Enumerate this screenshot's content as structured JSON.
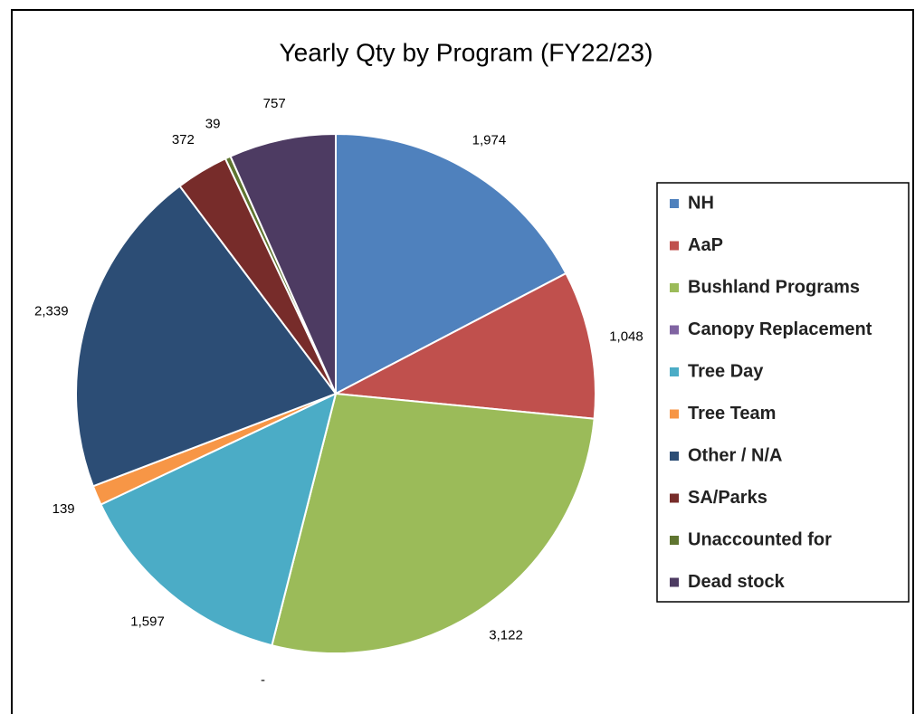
{
  "chart_data": {
    "type": "pie",
    "title": "Yearly Qty by Program (FY22/23)",
    "categories": [
      "NH",
      "AaP",
      "Bushland Programs",
      "Canopy Replacement",
      "Tree Day",
      "Tree Team",
      "Other / N/A",
      "SA/Parks",
      "Unaccounted for",
      "Dead stock"
    ],
    "values": [
      1974,
      1048,
      3122,
      0,
      1597,
      139,
      2339,
      372,
      39,
      757
    ],
    "value_labels": [
      "1,974",
      "1,048",
      "3,122",
      "-",
      "1,597",
      "139",
      "2,339",
      "372",
      "39",
      "757"
    ],
    "colors": [
      "#4f81bd",
      "#c0504d",
      "#9bbb59",
      "#8064a2",
      "#4bacc6",
      "#f79646",
      "#2c4d75",
      "#772c2a",
      "#5f7530",
      "#4d3b62"
    ],
    "legend": "right"
  }
}
